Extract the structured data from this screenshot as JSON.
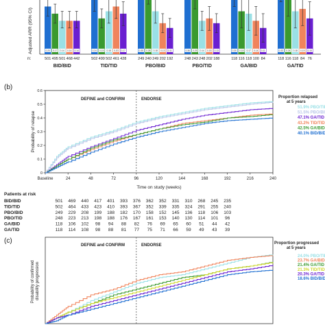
{
  "chart_data": [
    {
      "type": "bar",
      "panel": "",
      "ylabel": "Adjusted ARR (95% CI)",
      "ylim": [
        0,
        0.4
      ],
      "yticks": [],
      "n_label": "n:",
      "series_colors": [
        "#1f6fd1",
        "#3a9a2f",
        "#9ae0e6",
        "#f0845c",
        "#6a1fd1"
      ],
      "groups": [
        {
          "label": "BID/BID",
          "n": [
            "501",
            "495",
            "501",
            "468",
            "442"
          ],
          "values": [
            0.2,
            0.17,
            0.14,
            0.14,
            0.14
          ],
          "ci_low": [
            0.16,
            0.13,
            0.11,
            0.11,
            0.11
          ],
          "ci_high": [
            0.24,
            0.21,
            0.18,
            0.18,
            0.18
          ],
          "inbar": [
            "0.20",
            "0.17",
            "0.14",
            "0.14",
            "0.14"
          ]
        },
        {
          "label": "TID/TID",
          "n": [
            "502",
            "499",
            "502",
            "461",
            "428"
          ],
          "values": [
            0.24,
            0.15,
            0.18,
            0.2,
            0.17
          ],
          "ci_low": [
            0.18,
            0.11,
            0.13,
            0.15,
            0.12
          ],
          "ci_high": [
            0.3,
            0.19,
            0.23,
            0.25,
            0.22
          ],
          "inbar": [
            "0.24",
            "0.15",
            "0.18",
            "0.20",
            "0.17"
          ]
        },
        {
          "label": "PBO/BID",
          "n": [
            "249",
            "240",
            "249",
            "202",
            "192"
          ],
          "values": [
            0.35,
            0.28,
            0.18,
            0.13,
            0.11
          ],
          "ci_low": [
            0.27,
            0.21,
            0.13,
            0.09,
            0.07
          ],
          "ci_high": [
            0.43,
            0.35,
            0.23,
            0.17,
            0.15
          ],
          "inbar": [
            "0.35",
            "0.28",
            "0.18",
            "0.13",
            "0.11"
          ]
        },
        {
          "label": "PBO/TID",
          "n": [
            "248",
            "243",
            "248",
            "202",
            "188"
          ],
          "values": [
            0.36,
            0.25,
            0.14,
            0.15,
            0.13
          ],
          "ci_low": [
            0.28,
            0.19,
            0.1,
            0.1,
            0.09
          ],
          "ci_high": [
            0.44,
            0.31,
            0.18,
            0.2,
            0.17
          ],
          "inbar": [
            "0.36",
            "0.25",
            "0.14",
            "0.15",
            "0.13"
          ]
        },
        {
          "label": "GA/BID",
          "n": [
            "118",
            "116",
            "118",
            "100",
            "84"
          ],
          "values": [
            0.3,
            0.18,
            0.17,
            0.14,
            0.11
          ],
          "ci_low": [
            0.2,
            0.11,
            0.1,
            0.08,
            0.05
          ],
          "ci_high": [
            0.4,
            0.25,
            0.24,
            0.2,
            0.17
          ],
          "inbar": [
            "0.30",
            "0.18",
            "0.17",
            "0.14",
            "0.11"
          ]
        },
        {
          "label": "GA/TID",
          "n": [
            "118",
            "116",
            "118",
            "84",
            "76"
          ],
          "values": [
            0.33,
            0.24,
            0.18,
            0.19,
            0.15
          ],
          "ci_low": [
            0.22,
            0.16,
            0.11,
            0.12,
            0.08
          ],
          "ci_high": [
            0.44,
            0.32,
            0.25,
            0.26,
            0.22
          ],
          "inbar": [
            "0.33",
            "0.24",
            "0.18",
            "0.19",
            "0.15"
          ]
        }
      ]
    },
    {
      "type": "line",
      "panel": "(b)",
      "xlabel": "Time on study (weeks)",
      "ylabel": "Probability of relapse",
      "xlim": [
        0,
        240
      ],
      "ylim": [
        0,
        0.6
      ],
      "xticks": [
        "Baseline",
        "24",
        "48",
        "72",
        "96",
        "120",
        "144",
        "168",
        "192",
        "216",
        "240"
      ],
      "yticks": [
        "0",
        "0.1",
        "0.2",
        "0.3",
        "0.4",
        "0.5",
        "0.6"
      ],
      "phase_divider_x": 96,
      "phase_left": "DEFINE and CONFIRM",
      "phase_right": "ENDORSE",
      "legend_title_1": "Proportion relapsed",
      "legend_title_2": "at 5 years",
      "series": [
        {
          "name": "51.9% PBO/TID",
          "color": "#9ae0e6",
          "x": [
            0,
            12,
            24,
            48,
            72,
            96,
            120,
            144,
            168,
            192,
            216,
            240
          ],
          "y": [
            0,
            0.12,
            0.19,
            0.26,
            0.31,
            0.37,
            0.41,
            0.44,
            0.47,
            0.49,
            0.51,
            0.52
          ]
        },
        {
          "name": "51.5% PBO/BID",
          "color": "#b9c6e8",
          "x": [
            0,
            12,
            24,
            48,
            72,
            96,
            120,
            144,
            168,
            192,
            216,
            240
          ],
          "y": [
            0,
            0.11,
            0.18,
            0.25,
            0.3,
            0.36,
            0.4,
            0.43,
            0.46,
            0.48,
            0.5,
            0.515
          ]
        },
        {
          "name": "47.1% GA/TID",
          "color": "#6a1fd1",
          "x": [
            0,
            12,
            24,
            48,
            72,
            96,
            120,
            144,
            168,
            192,
            216,
            240
          ],
          "y": [
            0,
            0.06,
            0.12,
            0.19,
            0.25,
            0.31,
            0.35,
            0.39,
            0.42,
            0.44,
            0.46,
            0.47
          ]
        },
        {
          "name": "43.2% TID/TID",
          "color": "#f0845c",
          "x": [
            0,
            12,
            24,
            48,
            72,
            96,
            120,
            144,
            168,
            192,
            216,
            240
          ],
          "y": [
            0,
            0.05,
            0.1,
            0.17,
            0.23,
            0.28,
            0.32,
            0.36,
            0.38,
            0.4,
            0.42,
            0.43
          ]
        },
        {
          "name": "42.5% GA/BID",
          "color": "#3a9a2f",
          "x": [
            0,
            12,
            24,
            48,
            72,
            96,
            120,
            144,
            168,
            192,
            216,
            240
          ],
          "y": [
            0,
            0.05,
            0.1,
            0.18,
            0.24,
            0.28,
            0.32,
            0.35,
            0.37,
            0.4,
            0.41,
            0.425
          ]
        },
        {
          "name": "40.1% BID/BID",
          "color": "#1f6fd1",
          "x": [
            0,
            12,
            24,
            48,
            72,
            96,
            120,
            144,
            168,
            192,
            216,
            240
          ],
          "y": [
            0,
            0.04,
            0.08,
            0.15,
            0.21,
            0.26,
            0.3,
            0.33,
            0.36,
            0.38,
            0.39,
            0.4
          ]
        }
      ]
    },
    {
      "type": "table",
      "title": "Patients at risk",
      "rows": [
        {
          "label": "BID/BID",
          "values": [
            "501",
            "469",
            "440",
            "417",
            "401",
            "393",
            "376",
            "362",
            "352",
            "331",
            "310",
            "268",
            "245",
            "235"
          ]
        },
        {
          "label": "TID/TID",
          "values": [
            "502",
            "464",
            "433",
            "423",
            "410",
            "393",
            "367",
            "352",
            "339",
            "335",
            "324",
            "291",
            "255",
            "240"
          ]
        },
        {
          "label": "PBO/BID",
          "values": [
            "249",
            "229",
            "208",
            "199",
            "188",
            "182",
            "170",
            "158",
            "152",
            "145",
            "136",
            "118",
            "106",
            "103"
          ]
        },
        {
          "label": "PBO/TID",
          "values": [
            "248",
            "223",
            "213",
            "198",
            "188",
            "176",
            "167",
            "161",
            "153",
            "140",
            "130",
            "114",
            "101",
            "96"
          ]
        },
        {
          "label": "GA/BID",
          "values": [
            "118",
            "106",
            "102",
            "98",
            "94",
            "88",
            "82",
            "76",
            "69",
            "65",
            "60",
            "51",
            "44",
            "42"
          ]
        },
        {
          "label": "GA/TID",
          "values": [
            "118",
            "114",
            "108",
            "98",
            "88",
            "81",
            "77",
            "75",
            "71",
            "66",
            "59",
            "49",
            "43",
            "39"
          ]
        }
      ]
    },
    {
      "type": "line",
      "panel": "(c)",
      "xlabel": "",
      "ylabel": "Probability of confirmed disability progression",
      "xlim": [
        0,
        240
      ],
      "ylim": [
        0,
        0.3
      ],
      "phase_divider_x": 96,
      "phase_left": "DEFINE and CONFIRM",
      "phase_right": "ENDORSE",
      "legend_title_1": "Proportion progressed",
      "legend_title_2": "at 5 years",
      "series": [
        {
          "name": "24.0% PBO/TID",
          "color": "#9ae0e6",
          "x": [
            0,
            12,
            24,
            48,
            72,
            96,
            120,
            144,
            168,
            192,
            216,
            240
          ],
          "y": [
            0,
            0.02,
            0.04,
            0.08,
            0.11,
            0.14,
            0.16,
            0.17,
            0.19,
            0.21,
            0.23,
            0.24
          ]
        },
        {
          "name": "23.7% GA/BID",
          "color": "#f0845c",
          "x": [
            0,
            12,
            24,
            48,
            72,
            96,
            120,
            144,
            168,
            192,
            216,
            240
          ],
          "y": [
            0,
            0.03,
            0.06,
            0.1,
            0.12,
            0.15,
            0.17,
            0.18,
            0.2,
            0.22,
            0.23,
            0.237
          ]
        },
        {
          "name": "21.4% GA/TID",
          "color": "#3a9a2f",
          "x": [
            0,
            12,
            24,
            48,
            72,
            96,
            120,
            144,
            168,
            192,
            216,
            240
          ],
          "y": [
            0,
            0.02,
            0.04,
            0.07,
            0.1,
            0.12,
            0.14,
            0.16,
            0.17,
            0.19,
            0.2,
            0.214
          ]
        },
        {
          "name": "21.3% TID/TID",
          "color": "#cfd62a",
          "x": [
            0,
            12,
            24,
            48,
            72,
            96,
            120,
            144,
            168,
            192,
            216,
            240
          ],
          "y": [
            0,
            0.02,
            0.04,
            0.07,
            0.09,
            0.11,
            0.13,
            0.15,
            0.17,
            0.19,
            0.2,
            0.213
          ]
        },
        {
          "name": "20.3% GA/TID",
          "color": "#6a1fd1",
          "x": [
            0,
            12,
            24,
            48,
            72,
            96,
            120,
            144,
            168,
            192,
            216,
            240
          ],
          "y": [
            0,
            0.02,
            0.03,
            0.06,
            0.08,
            0.1,
            0.12,
            0.14,
            0.16,
            0.18,
            0.19,
            0.203
          ]
        },
        {
          "name": "18.6% BID/BID",
          "color": "#1f6fd1",
          "x": [
            0,
            12,
            24,
            48,
            72,
            96,
            120,
            144,
            168,
            192,
            216,
            240
          ],
          "y": [
            0,
            0.01,
            0.03,
            0.05,
            0.07,
            0.09,
            0.11,
            0.13,
            0.15,
            0.17,
            0.18,
            0.186
          ]
        }
      ]
    }
  ]
}
